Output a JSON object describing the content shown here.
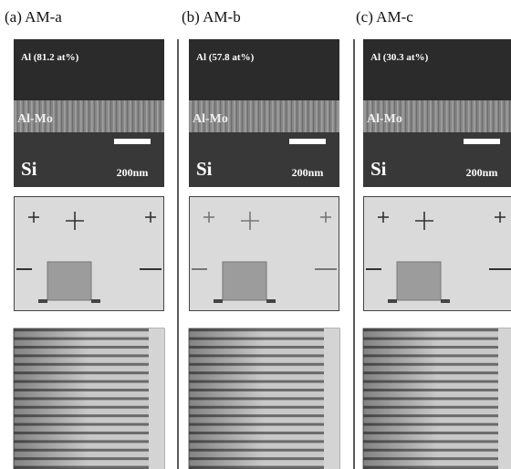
{
  "panels": [
    {
      "label": "(a) AM-a",
      "composition": "Al (81.2 at%)",
      "layer": "Al-Mo",
      "substrate": "Si",
      "scale": "200nm"
    },
    {
      "label": "(b) AM-b",
      "composition": "Al (57.8 at%)",
      "layer": "Al-Mo",
      "substrate": "Si",
      "scale": "200nm"
    },
    {
      "label": "(c) AM-c",
      "composition": "Al (30.3 at%)",
      "layer": "Al-Mo",
      "substrate": "Si",
      "scale": "200nm"
    }
  ]
}
